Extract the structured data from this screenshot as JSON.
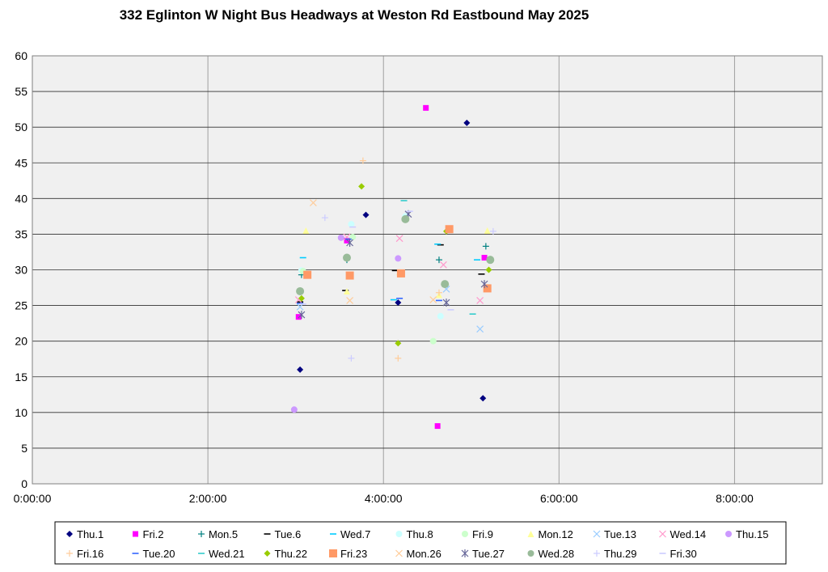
{
  "chart_data": {
    "type": "scatter",
    "title": "332 Eglinton W Night Bus Headways at Weston Rd Eastbound May 2025",
    "xlabel": "",
    "ylabel": "",
    "xlim": [
      "0:00:00",
      "9:00:00"
    ],
    "ylim": [
      0,
      60
    ],
    "x_ticks": [
      "0:00:00",
      "2:00:00",
      "4:00:00",
      "6:00:00",
      "8:00:00"
    ],
    "y_ticks": [
      0,
      5,
      10,
      15,
      20,
      25,
      30,
      35,
      40,
      45,
      50,
      55,
      60
    ],
    "grid": true,
    "legend_position": "bottom",
    "series": [
      {
        "name": "Thu.1",
        "color": "#000080",
        "marker": "diamond",
        "points": [
          [
            "3:03:00",
            16.0
          ],
          [
            "3:48:00",
            37.7
          ],
          [
            "4:10:00",
            25.4
          ],
          [
            "4:57:00",
            50.6
          ],
          [
            "5:08:00",
            12.0
          ]
        ]
      },
      {
        "name": "Fri.2",
        "color": "#ff00ff",
        "marker": "square",
        "points": [
          [
            "3:02:00",
            23.4
          ],
          [
            "3:35:00",
            34.1
          ],
          [
            "4:29:00",
            52.7
          ],
          [
            "4:37:00",
            8.1
          ],
          [
            "5:09:00",
            31.7
          ]
        ]
      },
      {
        "name": "Mon.5",
        "color": "#008080",
        "marker": "plus",
        "points": [
          [
            "3:04:00",
            29.3
          ],
          [
            "3:35:00",
            31.4
          ],
          [
            "4:38:00",
            31.4
          ],
          [
            "5:10:00",
            33.3
          ]
        ]
      },
      {
        "name": "Tue.6",
        "color": "#000000",
        "marker": "dash",
        "points": [
          [
            "3:03:00",
            25.5
          ],
          [
            "3:34:00",
            27.1
          ],
          [
            "4:08:00",
            29.9
          ],
          [
            "4:39:00",
            33.5
          ],
          [
            "5:07:00",
            29.4
          ]
        ]
      },
      {
        "name": "Wed.7",
        "color": "#00ccff",
        "marker": "dash",
        "points": [
          [
            "3:05:00",
            31.7
          ],
          [
            "4:07:00",
            25.8
          ],
          [
            "4:37:00",
            33.6
          ],
          [
            "5:04:00",
            31.4
          ]
        ]
      },
      {
        "name": "Thu.8",
        "color": "#ccffff",
        "marker": "circle",
        "points": [
          [
            "3:04:00",
            29.9
          ],
          [
            "3:38:00",
            36.4
          ],
          [
            "4:15:00",
            37.5
          ],
          [
            "4:39:00",
            23.5
          ]
        ]
      },
      {
        "name": "Fri.9",
        "color": "#ccffcc",
        "marker": "circle",
        "points": [
          [
            "3:05:00",
            29.8
          ],
          [
            "3:39:00",
            34.6
          ],
          [
            "4:34:00",
            20.0
          ]
        ]
      },
      {
        "name": "Mon.12",
        "color": "#ffff99",
        "marker": "triangle",
        "points": [
          [
            "3:07:00",
            35.5
          ],
          [
            "3:35:00",
            27.0
          ],
          [
            "4:11:00",
            29.7
          ],
          [
            "4:38:00",
            26.5
          ],
          [
            "5:11:00",
            35.5
          ]
        ]
      },
      {
        "name": "Tue.13",
        "color": "#99ccff",
        "marker": "x",
        "points": [
          [
            "3:03:00",
            24.8
          ],
          [
            "4:43:00",
            27.3
          ],
          [
            "5:06:00",
            21.7
          ]
        ]
      },
      {
        "name": "Wed.14",
        "color": "#ff99cc",
        "marker": "x",
        "points": [
          [
            "3:02:00",
            25.8
          ],
          [
            "3:35:00",
            34.6
          ],
          [
            "4:11:00",
            34.4
          ],
          [
            "4:41:00",
            30.7
          ],
          [
            "5:06:00",
            25.7
          ]
        ]
      },
      {
        "name": "Thu.15",
        "color": "#cc99ff",
        "marker": "circle",
        "points": [
          [
            "2:59:00",
            10.4
          ],
          [
            "3:31:00",
            34.5
          ],
          [
            "4:10:00",
            31.6
          ]
        ]
      },
      {
        "name": "Fri.16",
        "color": "#ffcc99",
        "marker": "plus",
        "points": [
          [
            "3:46:00",
            45.3
          ],
          [
            "4:10:00",
            17.6
          ],
          [
            "4:38:00",
            26.8
          ]
        ]
      },
      {
        "name": "Tue.20",
        "color": "#3366ff",
        "marker": "dash",
        "points": [
          [
            "3:03:00",
            25.3
          ],
          [
            "3:36:00",
            34.3
          ],
          [
            "4:11:00",
            26.0
          ],
          [
            "4:38:00",
            25.7
          ]
        ]
      },
      {
        "name": "Wed.21",
        "color": "#33cccc",
        "marker": "dash",
        "points": [
          [
            "4:14:00",
            39.7
          ],
          [
            "5:01:00",
            23.8
          ]
        ]
      },
      {
        "name": "Thu.22",
        "color": "#99cc00",
        "marker": "diamond",
        "points": [
          [
            "3:04:00",
            26.0
          ],
          [
            "3:45:00",
            41.7
          ],
          [
            "4:10:00",
            19.7
          ],
          [
            "4:43:00",
            35.4
          ],
          [
            "5:12:00",
            30.0
          ]
        ]
      },
      {
        "name": "Fri.23",
        "color": "#ff9966",
        "marker": "square",
        "points": [
          [
            "3:08:00",
            29.3
          ],
          [
            "3:37:00",
            29.2
          ],
          [
            "4:12:00",
            29.5
          ],
          [
            "4:45:00",
            35.7
          ],
          [
            "5:11:00",
            27.4
          ]
        ]
      },
      {
        "name": "Mon.26",
        "color": "#ffcc99",
        "marker": "x",
        "points": [
          [
            "3:12:00",
            39.4
          ],
          [
            "3:37:00",
            25.7
          ],
          [
            "4:34:00",
            25.8
          ]
        ]
      },
      {
        "name": "Tue.27",
        "color": "#666699",
        "marker": "asterisk",
        "points": [
          [
            "3:04:00",
            23.7
          ],
          [
            "3:37:00",
            33.8
          ],
          [
            "4:17:00",
            37.8
          ],
          [
            "4:43:00",
            25.4
          ],
          [
            "5:09:00",
            28.0
          ]
        ]
      },
      {
        "name": "Wed.28",
        "color": "#99bb99",
        "marker": "circle",
        "points": [
          [
            "3:03:00",
            27.0
          ],
          [
            "3:35:00",
            31.7
          ],
          [
            "4:15:00",
            37.1
          ],
          [
            "4:42:00",
            28.0
          ],
          [
            "5:13:00",
            31.4
          ]
        ]
      },
      {
        "name": "Thu.29",
        "color": "#ccccff",
        "marker": "plus",
        "points": [
          [
            "3:20:00",
            37.3
          ],
          [
            "3:38:00",
            17.6
          ],
          [
            "5:15:00",
            35.4
          ]
        ]
      },
      {
        "name": "Fri.30",
        "color": "#ccccff",
        "marker": "dash",
        "points": [
          [
            "3:05:00",
            25.2
          ],
          [
            "3:39:00",
            36.0
          ],
          [
            "4:18:00",
            38.2
          ],
          [
            "4:46:00",
            24.4
          ]
        ]
      }
    ]
  }
}
